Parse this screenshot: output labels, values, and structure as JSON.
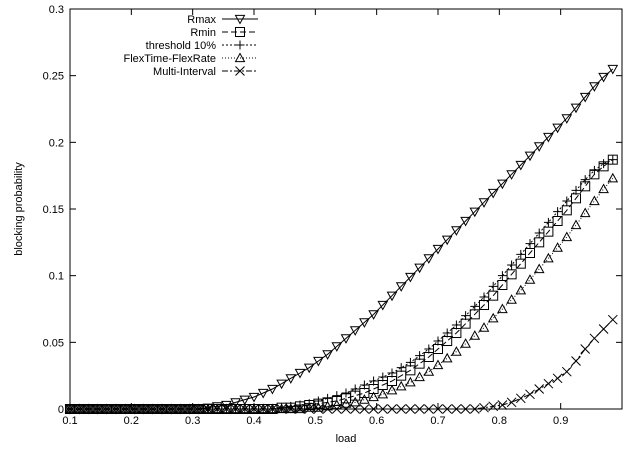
{
  "chart_data": {
    "type": "line",
    "title": "",
    "xlabel": "load",
    "ylabel": "blocking probability",
    "xlim": [
      0.1,
      1.0
    ],
    "ylim": [
      0,
      0.3
    ],
    "grid": false,
    "legend_position": "top-left",
    "x_ticks": [
      "0.1",
      "0.2",
      "0.3",
      "0.4",
      "0.5",
      "0.6",
      "0.7",
      "0.8",
      "0.9"
    ],
    "y_ticks": [
      "0",
      "0.05",
      "0.1",
      "0.15",
      "0.2",
      "0.25",
      "0.3"
    ],
    "x": [
      0.1,
      0.115,
      0.13,
      0.145,
      0.16,
      0.175,
      0.19,
      0.205,
      0.22,
      0.235,
      0.25,
      0.265,
      0.28,
      0.295,
      0.31,
      0.325,
      0.34,
      0.355,
      0.37,
      0.385,
      0.4,
      0.415,
      0.43,
      0.445,
      0.46,
      0.475,
      0.49,
      0.505,
      0.52,
      0.535,
      0.55,
      0.565,
      0.58,
      0.595,
      0.61,
      0.625,
      0.64,
      0.655,
      0.67,
      0.685,
      0.7,
      0.715,
      0.73,
      0.745,
      0.76,
      0.775,
      0.79,
      0.805,
      0.82,
      0.835,
      0.85,
      0.865,
      0.88,
      0.895,
      0.91,
      0.925,
      0.94,
      0.955,
      0.97,
      0.985
    ],
    "series": [
      {
        "name": "Rmax",
        "marker": "triangle-down",
        "dash": "",
        "values": [
          0,
          0,
          0,
          0,
          0,
          0,
          0,
          0,
          0,
          0,
          0,
          0,
          0,
          0,
          0,
          0.001,
          0.002,
          0.003,
          0.005,
          0.007,
          0.009,
          0.012,
          0.015,
          0.019,
          0.023,
          0.027,
          0.031,
          0.036,
          0.041,
          0.047,
          0.053,
          0.059,
          0.065,
          0.071,
          0.078,
          0.085,
          0.092,
          0.099,
          0.106,
          0.113,
          0.12,
          0.127,
          0.134,
          0.141,
          0.148,
          0.155,
          0.162,
          0.169,
          0.176,
          0.183,
          0.19,
          0.197,
          0.204,
          0.211,
          0.218,
          0.226,
          0.234,
          0.242,
          0.249,
          0.255
        ]
      },
      {
        "name": "Rmin",
        "marker": "square",
        "dash": "6,3",
        "values": [
          0,
          0,
          0,
          0,
          0,
          0,
          0,
          0,
          0,
          0,
          0,
          0,
          0,
          0,
          0,
          0,
          0,
          0,
          0,
          0,
          0,
          0,
          0,
          0.001,
          0.001,
          0.002,
          0.003,
          0.004,
          0.005,
          0.006,
          0.008,
          0.01,
          0.012,
          0.015,
          0.018,
          0.021,
          0.025,
          0.029,
          0.034,
          0.039,
          0.045,
          0.051,
          0.057,
          0.064,
          0.071,
          0.078,
          0.085,
          0.093,
          0.101,
          0.109,
          0.117,
          0.125,
          0.133,
          0.141,
          0.149,
          0.158,
          0.167,
          0.176,
          0.182,
          0.187
        ]
      },
      {
        "name": "threshold 10%",
        "marker": "plus",
        "dash": "2,2",
        "values": [
          0,
          0,
          0,
          0,
          0,
          0,
          0,
          0,
          0,
          0,
          0,
          0,
          0,
          0,
          0,
          0,
          0,
          0,
          0,
          0,
          0,
          0,
          0,
          0.001,
          0.002,
          0.003,
          0.004,
          0.006,
          0.008,
          0.01,
          0.012,
          0.015,
          0.018,
          0.021,
          0.024,
          0.027,
          0.031,
          0.035,
          0.04,
          0.045,
          0.051,
          0.057,
          0.063,
          0.07,
          0.077,
          0.084,
          0.092,
          0.1,
          0.108,
          0.116,
          0.124,
          0.132,
          0.14,
          0.148,
          0.156,
          0.164,
          0.172,
          0.179,
          0.184,
          0.187
        ]
      },
      {
        "name": "FlexTime-FlexRate",
        "marker": "triangle-up",
        "dash": "1,2",
        "values": [
          0,
          0,
          0,
          0,
          0,
          0,
          0,
          0,
          0,
          0,
          0,
          0,
          0,
          0,
          0,
          0,
          0,
          0,
          0,
          0,
          0,
          0,
          0,
          0,
          0,
          0,
          0.001,
          0.001,
          0.002,
          0.003,
          0.004,
          0.005,
          0.007,
          0.009,
          0.011,
          0.014,
          0.017,
          0.02,
          0.024,
          0.028,
          0.033,
          0.038,
          0.043,
          0.049,
          0.055,
          0.061,
          0.068,
          0.075,
          0.082,
          0.089,
          0.097,
          0.105,
          0.113,
          0.121,
          0.129,
          0.138,
          0.147,
          0.156,
          0.165,
          0.173
        ]
      },
      {
        "name": "Multi-Interval",
        "marker": "x",
        "dash": "6,2,2,2",
        "values": [
          0,
          0,
          0,
          0,
          0,
          0,
          0,
          0,
          0,
          0,
          0,
          0,
          0,
          0,
          0,
          0,
          0,
          0,
          0,
          0,
          0,
          0,
          0,
          0,
          0,
          0,
          0,
          0,
          0,
          0,
          0,
          0,
          0,
          0,
          0,
          0,
          0,
          0,
          0,
          0,
          0,
          0,
          0,
          0,
          0,
          0.001,
          0.002,
          0.003,
          0.005,
          0.008,
          0.011,
          0.015,
          0.019,
          0.023,
          0.028,
          0.036,
          0.045,
          0.053,
          0.06,
          0.067
        ]
      }
    ]
  }
}
